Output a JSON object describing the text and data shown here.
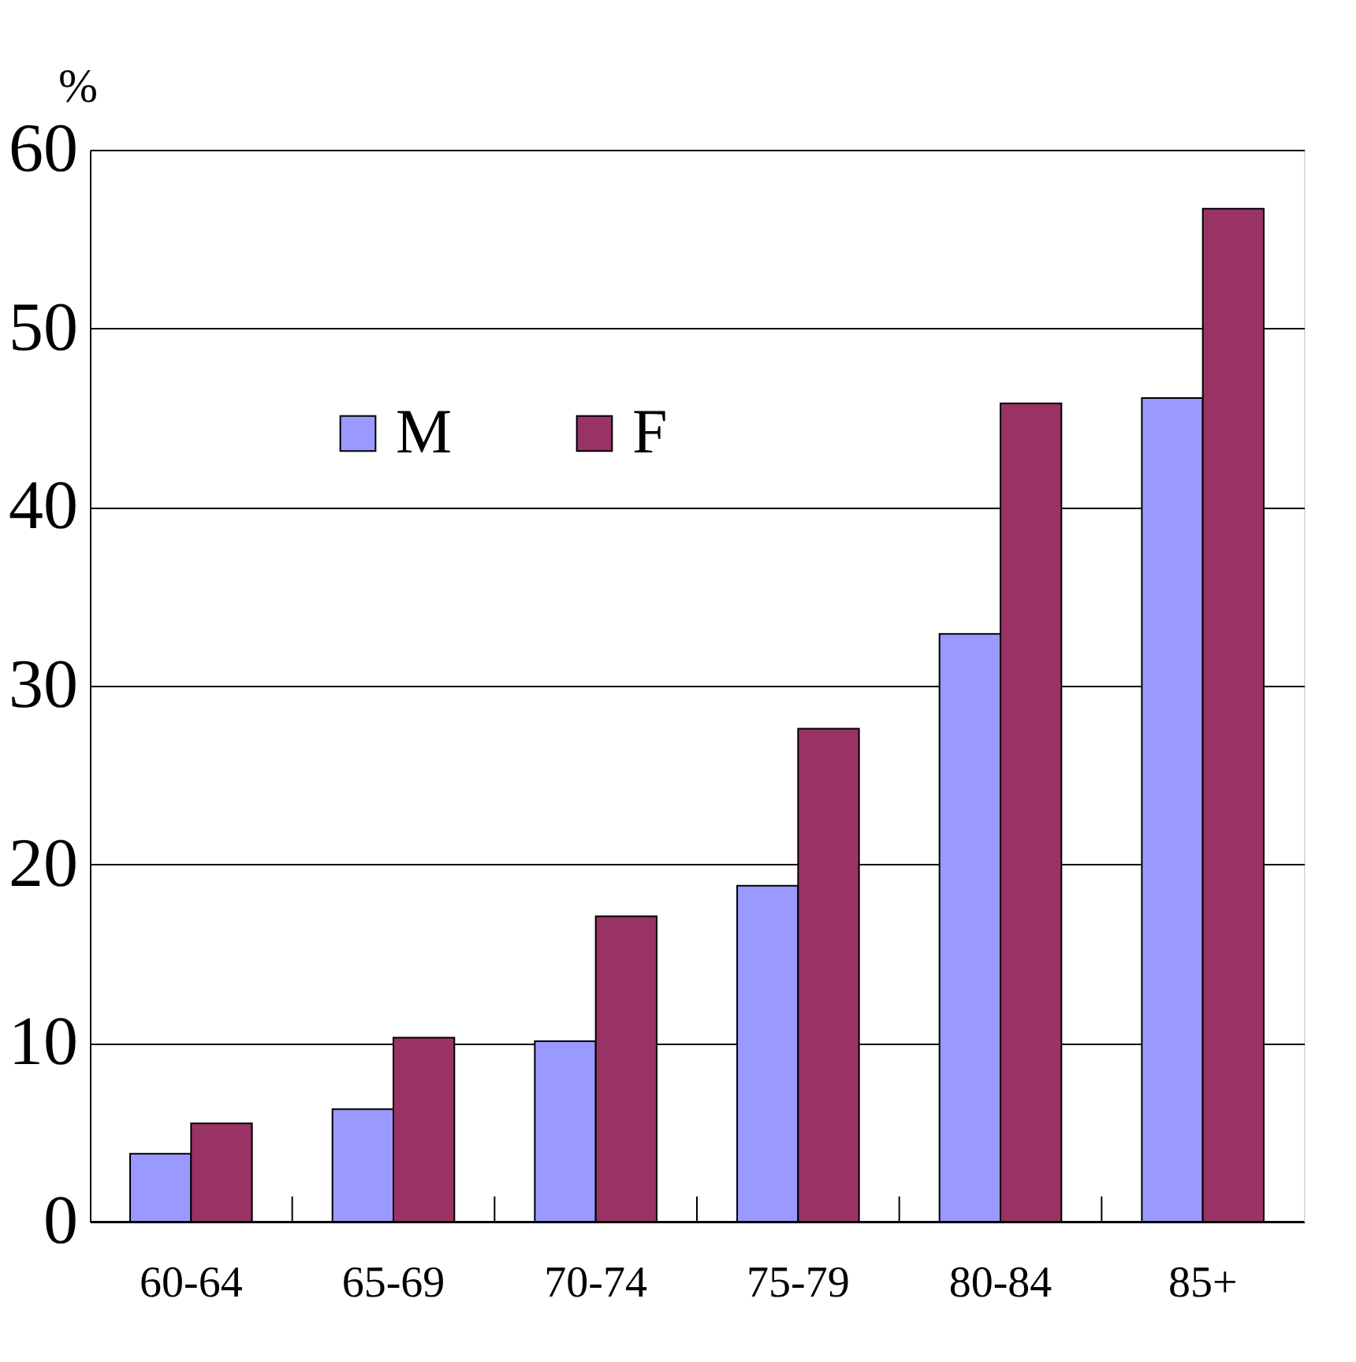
{
  "chart_data": {
    "type": "bar",
    "ylabel": "%",
    "categories": [
      "60-64",
      "65-69",
      "70-74",
      "75-79",
      "80-84",
      "85+"
    ],
    "series": [
      {
        "name": "M",
        "color": "#9999ff",
        "values": [
          3.8,
          6.3,
          10.1,
          18.8,
          32.9,
          46.1
        ]
      },
      {
        "name": "F",
        "color": "#993366",
        "values": [
          5.5,
          10.3,
          17.1,
          27.6,
          45.8,
          56.7
        ]
      }
    ],
    "ylim": [
      0,
      60
    ],
    "yticks": [
      0,
      10,
      20,
      30,
      40,
      50,
      60
    ],
    "grid": "y",
    "legend": "top left"
  }
}
